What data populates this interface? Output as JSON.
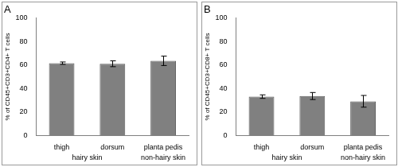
{
  "chart_data": [
    {
      "type": "bar",
      "title": "A",
      "categories": [
        "thigh",
        "dorsum",
        "planta pedis"
      ],
      "values": [
        61.5,
        61,
        63.5
      ],
      "errors": [
        1,
        2.5,
        4
      ],
      "color": "#808080",
      "ylabel": "% of CD45+CD3+CD4+ T cells",
      "ylim": [
        0,
        100
      ],
      "yticks": [
        0,
        20,
        40,
        60,
        80,
        100
      ],
      "grid": false,
      "annotations": [
        {
          "text": "hairy skin",
          "categories": [
            "thigh",
            "dorsum"
          ]
        },
        {
          "text": "non-hairy skin",
          "categories": [
            "planta pedis"
          ]
        }
      ]
    },
    {
      "type": "bar",
      "title": "B",
      "categories": [
        "thigh",
        "dorsum",
        "planta pedis"
      ],
      "values": [
        33,
        33.5,
        29
      ],
      "errors": [
        1.5,
        3,
        5
      ],
      "color": "#808080",
      "ylabel": "% of CD45+CD3+CD8+ T cells",
      "ylim": [
        0,
        100
      ],
      "yticks": [
        0,
        20,
        40,
        60,
        80,
        100
      ],
      "grid": false,
      "annotations": [
        {
          "text": "hairy skin",
          "categories": [
            "thigh",
            "dorsum"
          ]
        },
        {
          "text": "non-hairy skin",
          "categories": [
            "planta pedis"
          ]
        }
      ]
    }
  ]
}
